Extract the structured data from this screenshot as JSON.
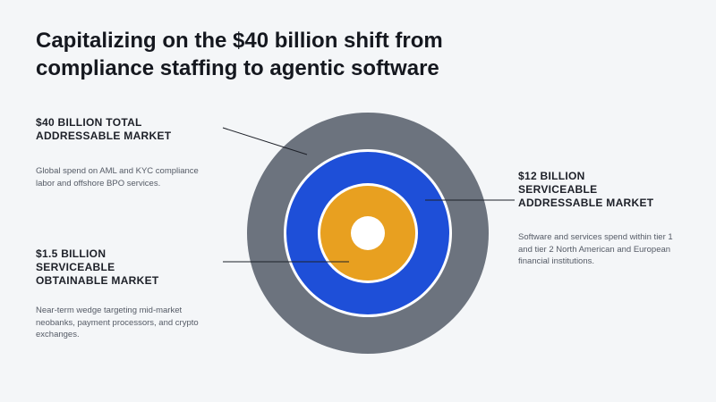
{
  "title": "Capitalizing on the $40 billion shift from compliance staffing to agentic software",
  "markets": [
    {
      "heading": "$40 BILLION TOTAL ADDRESSABLE MARKET",
      "description": "Global spend on AML and KYC compliance labor and offshore BPO services."
    },
    {
      "heading": "$12 BILLION SERVICEABLE ADDRESSABLE MARKET",
      "description": "Software and services spend within tier 1 and tier 2 North American and European financial institutions."
    },
    {
      "heading": "$1.5 BILLION SERVICEABLE OBTAINABLE MARKET",
      "description": "Near-term wedge targeting mid-market neobanks, payment processors, and crypto exchanges."
    }
  ]
}
